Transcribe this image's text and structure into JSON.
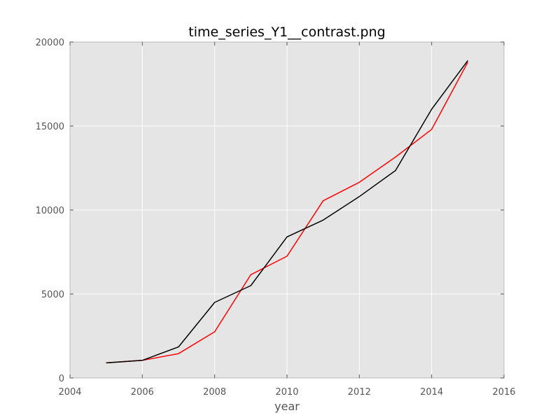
{
  "chart_data": {
    "type": "line",
    "title": "time_series_Y1__contrast.png",
    "xlabel": "year",
    "ylabel": "",
    "xlim": [
      2004,
      2016
    ],
    "ylim": [
      0,
      20000
    ],
    "xticks": [
      2004,
      2006,
      2008,
      2010,
      2012,
      2014,
      2016
    ],
    "yticks": [
      0,
      5000,
      10000,
      15000,
      20000
    ],
    "grid": true,
    "background": "#e5e5e5",
    "grid_color": "#ffffff",
    "x": [
      2005,
      2006,
      2007,
      2008,
      2009,
      2010,
      2011,
      2012,
      2013,
      2014,
      2015
    ],
    "series": [
      {
        "color": "#ff0000",
        "values": [
          900,
          1050,
          1450,
          2750,
          6150,
          7250,
          10550,
          11650,
          13150,
          14800,
          18800
        ]
      },
      {
        "color": "#000000",
        "values": [
          900,
          1050,
          1850,
          4500,
          5500,
          8400,
          9400,
          10800,
          12350,
          16000,
          18900
        ]
      }
    ]
  }
}
